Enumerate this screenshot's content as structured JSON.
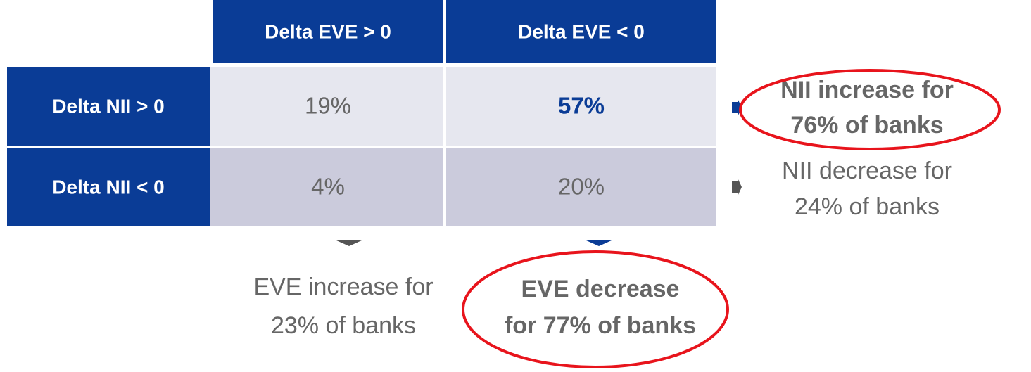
{
  "table": {
    "columns": [
      "Delta EVE > 0",
      "Delta EVE < 0"
    ],
    "rows": [
      {
        "label": "Delta NII > 0",
        "cells": [
          "19%",
          "57%"
        ]
      },
      {
        "label": "Delta NII < 0",
        "cells": [
          "4%",
          "20%"
        ]
      }
    ]
  },
  "row_summaries": [
    {
      "lines": [
        "NII increase for",
        "76% of banks"
      ]
    },
    {
      "lines": [
        "NII decrease for",
        "24% of banks"
      ]
    }
  ],
  "column_summaries": [
    {
      "lines": [
        "EVE increase for",
        "23% of banks"
      ]
    },
    {
      "lines": [
        "EVE decrease",
        "for 77% of banks"
      ]
    }
  ]
}
